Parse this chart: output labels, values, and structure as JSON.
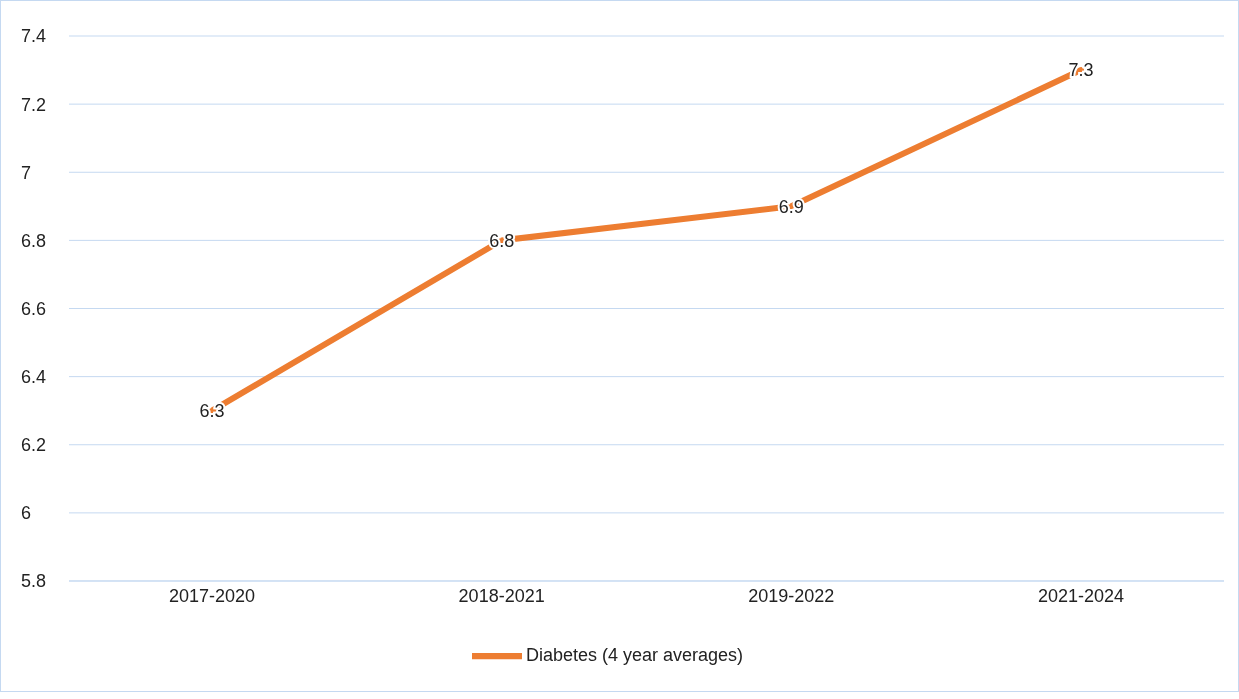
{
  "chart_data": {
    "type": "line",
    "categories": [
      "2017-2020",
      "2018-2021",
      "2019-2022",
      "2021-2024"
    ],
    "series": [
      {
        "name": "Diabetes (4 year averages)",
        "color": "#ed7d31",
        "values": [
          6.3,
          6.8,
          6.9,
          7.3
        ]
      }
    ],
    "ylim": [
      5.8,
      7.4
    ],
    "yticks": [
      5.8,
      6,
      6.2,
      6.4,
      6.6,
      6.8,
      7,
      7.2,
      7.4
    ],
    "grid": "y",
    "legend": "bottom",
    "data_labels": true,
    "marker": "none",
    "line_style": "solid"
  }
}
